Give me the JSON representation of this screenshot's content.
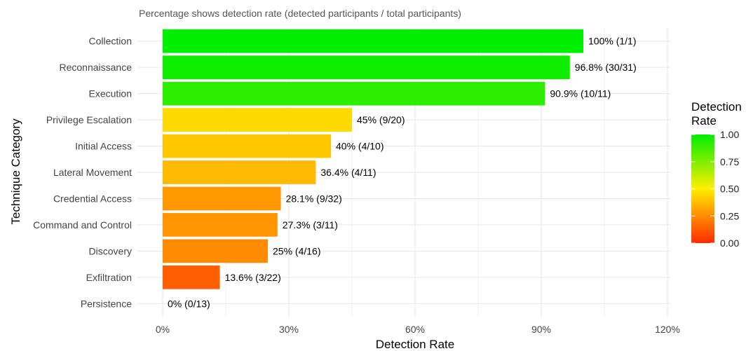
{
  "chart_data": {
    "type": "bar",
    "orientation": "horizontal",
    "subtitle": "Percentage shows detection rate (detected participants / total participants)",
    "xlabel": "Detection Rate",
    "ylabel": "Technique Category",
    "xlim": [
      0,
      120
    ],
    "x_ticks": [
      "0%",
      "30%",
      "60%",
      "90%",
      "120%"
    ],
    "x_tick_values": [
      0,
      30,
      60,
      90,
      120
    ],
    "grid": true,
    "categories": [
      "Collection",
      "Reconnaissance",
      "Execution",
      "Privilege Escalation",
      "Initial Access",
      "Lateral Movement",
      "Credential Access",
      "Command and Control",
      "Discovery",
      "Exfiltration",
      "Persistence"
    ],
    "values": [
      100,
      96.8,
      90.9,
      45,
      40,
      36.4,
      28.1,
      27.3,
      25,
      13.6,
      0
    ],
    "data_labels": [
      "100% (1/1)",
      "96.8% (30/31)",
      "90.9% (10/11)",
      "45% (9/20)",
      "40% (4/10)",
      "36.4% (4/11)",
      "28.1% (9/32)",
      "27.3% (3/11)",
      "25% (4/16)",
      "13.6% (3/22)",
      "0% (0/13)"
    ],
    "legend": {
      "title": "Detection Rate",
      "position": "right",
      "ticks": [
        "1.00",
        "0.75",
        "0.50",
        "0.25",
        "0.00"
      ],
      "tick_values": [
        1,
        0.75,
        0.5,
        0.25,
        0
      ],
      "colors": {
        "low": "#ff2a00",
        "mid": "#ffee00",
        "high": "#00ee00"
      },
      "midpoint": 0.5
    }
  }
}
